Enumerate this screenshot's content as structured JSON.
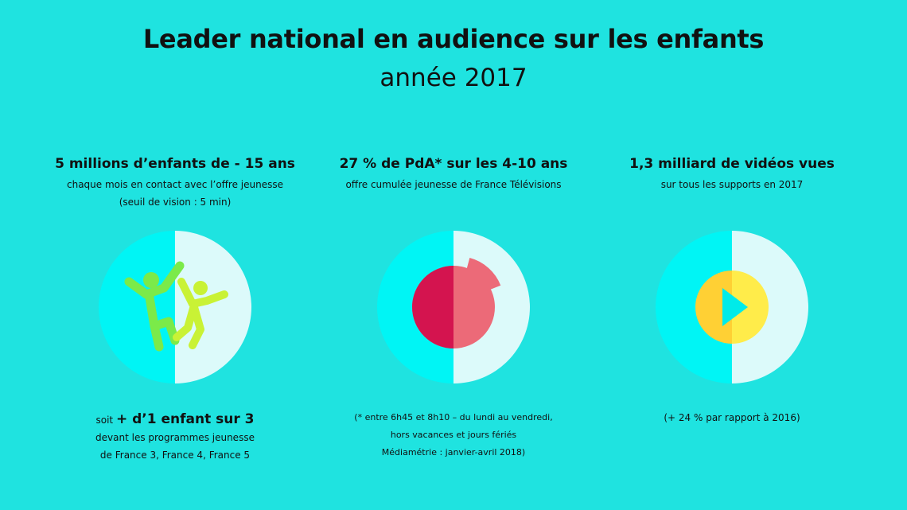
{
  "title": "Leader national en audience sur les enfants",
  "subtitle": "année 2017",
  "colors": {
    "background": "#1fe3e0",
    "circle_left": "#00f5f5",
    "circle_right": "#dcfafa",
    "green": "#7bea49",
    "lime": "#c9f235",
    "pie_dark": "#d4144f",
    "pie_light": "#ec6a78",
    "play_outer": "#ffd034",
    "play_inner": "#ffec4a",
    "play_triangle": "#00ebe9"
  },
  "columns": [
    {
      "headline": "5 millions d’enfants de - 15 ans",
      "description": "chaque mois en contact avec l’offre jeunesse (seuil de vision : 5 min)",
      "icon": "children-playing-icon",
      "footer_prefix": "soit ",
      "footer_emphasis": "+ d’1 enfant sur 3",
      "footer_lines": [
        "devant les programmes jeunesse",
        "de France 3, France 4, France 5"
      ]
    },
    {
      "headline": "27 % de PdA* sur les 4-10 ans",
      "description": "offre cumulée jeunesse de France Télévisions",
      "icon": "pie-chart-icon",
      "share_percent": 27,
      "footer_lines": [
        "(* entre 6h45 et 8h10 – du lundi au vendredi,",
        "hors vacances et jours fériés",
        "Médiamétrie : janvier-avril 2018)"
      ]
    },
    {
      "headline": "1,3 milliard de vidéos vues",
      "description": "sur tous les supports en 2017",
      "icon": "play-icon",
      "footer_lines": [
        "(+ 24 % par rapport à 2016)"
      ]
    }
  ]
}
